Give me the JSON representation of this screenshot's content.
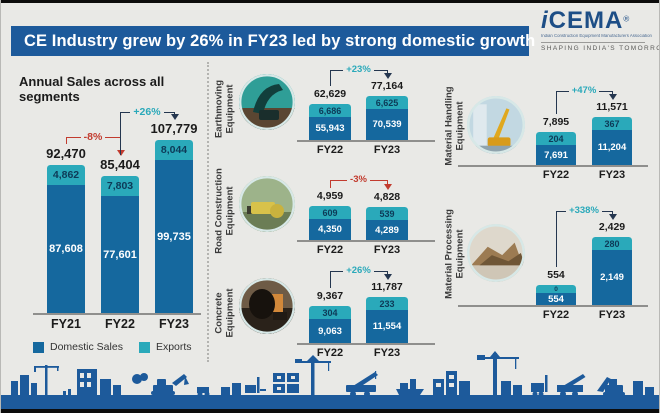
{
  "header": {
    "title": "CE Industry grew by 26% in FY23 led by strong domestic growth"
  },
  "logo": {
    "brand_i": "i",
    "brand_rest": "CEMA",
    "registered": "®",
    "full_name": "Indian Construction Equipment Manufacturers Association",
    "tagline": "SHAPING INDIA'S TOMORROW"
  },
  "colors": {
    "background": "#e9e9e6",
    "banner": "#1d5a9b",
    "domestic": "#15689e",
    "exports": "#2aa9ba",
    "negative": "#c23b2e",
    "positive": "#2aa9ba",
    "arrow_line": "#24364f",
    "skyline": "#1d5a9b",
    "text_dark": "#1b1b1b"
  },
  "chart_data": [
    {
      "id": "annual-sales",
      "type": "bar",
      "stacked": true,
      "title": "Annual Sales across all segments",
      "categories": [
        "FY21",
        "FY22",
        "FY23"
      ],
      "series": [
        {
          "name": "Domestic Sales",
          "values": [
            87608,
            77601,
            99735
          ]
        },
        {
          "name": "Exports",
          "values": [
            4862,
            7803,
            8044
          ]
        }
      ],
      "totals": [
        92470,
        85404,
        107779
      ],
      "changes": [
        {
          "from": 0,
          "to": 1,
          "label": "-8%",
          "negative": true
        },
        {
          "from": 1,
          "to": 2,
          "label": "+26%",
          "negative": false
        }
      ],
      "legend_position": "bottom"
    },
    {
      "id": "earthmoving",
      "type": "bar",
      "stacked": true,
      "label": "Earthmoving Equipment",
      "categories": [
        "FY22",
        "FY23"
      ],
      "series": [
        {
          "name": "Domestic Sales",
          "values": [
            55943,
            70539
          ]
        },
        {
          "name": "Exports",
          "values": [
            6686,
            6625
          ]
        }
      ],
      "totals": [
        62629,
        77164
      ],
      "changes": [
        {
          "from": 0,
          "to": 1,
          "label": "+23%",
          "negative": false
        }
      ]
    },
    {
      "id": "road-construction",
      "type": "bar",
      "stacked": true,
      "label": "Road Construction Equipment",
      "categories": [
        "FY22",
        "FY23"
      ],
      "series": [
        {
          "name": "Domestic Sales",
          "values": [
            4350,
            4289
          ]
        },
        {
          "name": "Exports",
          "values": [
            609,
            539
          ]
        }
      ],
      "totals": [
        4959,
        4828
      ],
      "changes": [
        {
          "from": 0,
          "to": 1,
          "label": "-3%",
          "negative": true
        }
      ]
    },
    {
      "id": "concrete",
      "type": "bar",
      "stacked": true,
      "label": "Concrete Equipment",
      "categories": [
        "FY22",
        "FY23"
      ],
      "series": [
        {
          "name": "Domestic Sales",
          "values": [
            9063,
            11554
          ]
        },
        {
          "name": "Exports",
          "values": [
            304,
            233
          ]
        }
      ],
      "totals": [
        9367,
        11787
      ],
      "changes": [
        {
          "from": 0,
          "to": 1,
          "label": "+26%",
          "negative": false
        }
      ]
    },
    {
      "id": "material-handling",
      "type": "bar",
      "stacked": true,
      "label": "Material Handling Equipment",
      "categories": [
        "FY22",
        "FY23"
      ],
      "series": [
        {
          "name": "Domestic Sales",
          "values": [
            7691,
            11204
          ]
        },
        {
          "name": "Exports",
          "values": [
            204,
            367
          ]
        }
      ],
      "totals": [
        7895,
        11571
      ],
      "changes": [
        {
          "from": 0,
          "to": 1,
          "label": "+47%",
          "negative": false
        }
      ]
    },
    {
      "id": "material-processing",
      "type": "bar",
      "stacked": true,
      "label": "Material Processing Equipment",
      "categories": [
        "FY22",
        "FY23"
      ],
      "series": [
        {
          "name": "Domestic Sales",
          "values": [
            554,
            2149
          ]
        },
        {
          "name": "Exports",
          "values": [
            0,
            280
          ]
        }
      ],
      "totals": [
        554,
        2429
      ],
      "changes": [
        {
          "from": 0,
          "to": 1,
          "label": "+338%",
          "negative": false
        }
      ]
    }
  ]
}
